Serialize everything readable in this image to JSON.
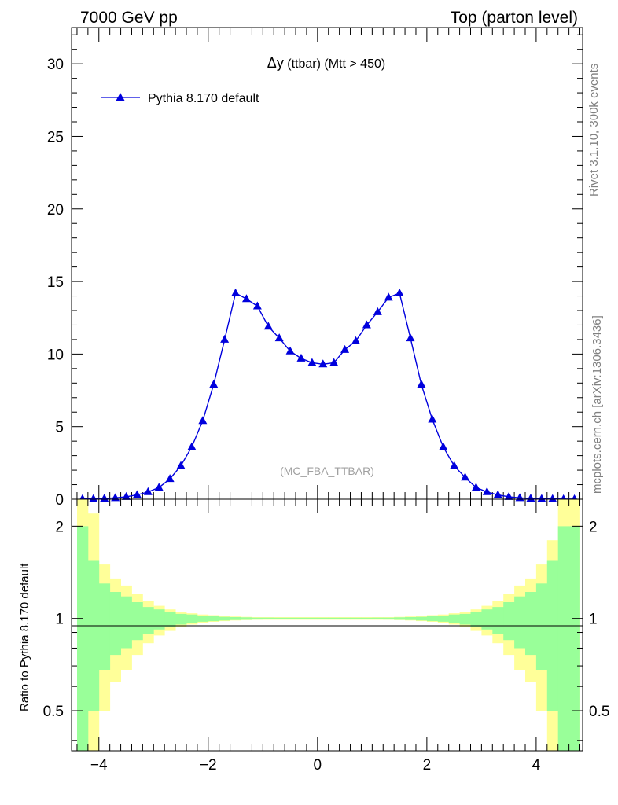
{
  "header": {
    "left": "7000 GeV pp",
    "right": "Top (parton level)"
  },
  "side": {
    "top": "Rivet 3.1.10,  300k events",
    "bottom": "mcplots.cern.ch [arXiv:1306.3436]"
  },
  "watermark": "(MC_FBA_TTBAR)",
  "chart_data": [
    {
      "type": "line",
      "title_main": "Δy",
      "title_rest": " (ttbar) (Mtt > 450)",
      "xlabel": "",
      "ylabel": "",
      "xlim": [
        -4.5,
        4.85
      ],
      "ylim": [
        0,
        32.5
      ],
      "xticks": [
        -4,
        -2,
        0,
        2,
        4
      ],
      "yticks": [
        0,
        5,
        10,
        15,
        20,
        25,
        30
      ],
      "legend_position": "top-left",
      "series": [
        {
          "name": "Pythia 8.170 default",
          "color": "#0000dd",
          "marker": "triangle",
          "x": [
            -4.3,
            -4.1,
            -3.9,
            -3.7,
            -3.5,
            -3.3,
            -3.1,
            -2.9,
            -2.7,
            -2.5,
            -2.3,
            -2.1,
            -1.9,
            -1.7,
            -1.5,
            -1.3,
            -1.1,
            -0.9,
            -0.7,
            -0.5,
            -0.3,
            -0.1,
            0.1,
            0.3,
            0.5,
            0.7,
            0.9,
            1.1,
            1.3,
            1.5,
            1.7,
            1.9,
            2.1,
            2.3,
            2.5,
            2.7,
            2.9,
            3.1,
            3.3,
            3.5,
            3.7,
            3.9,
            4.1,
            4.3,
            4.5,
            4.7
          ],
          "y": [
            0.02,
            0.03,
            0.05,
            0.09,
            0.17,
            0.3,
            0.5,
            0.8,
            1.4,
            2.3,
            3.6,
            5.4,
            7.9,
            11.0,
            14.2,
            13.8,
            13.3,
            11.9,
            11.1,
            10.2,
            9.7,
            9.4,
            9.3,
            9.4,
            10.3,
            10.9,
            12.0,
            12.9,
            13.9,
            14.2,
            11.1,
            7.9,
            5.5,
            3.6,
            2.3,
            1.5,
            0.8,
            0.5,
            0.3,
            0.17,
            0.09,
            0.05,
            0.03,
            0.02,
            0.01,
            0.01
          ]
        }
      ]
    },
    {
      "type": "area",
      "ylabel": "Ratio to Pythia 8.170 default",
      "xlim": [
        -4.5,
        4.85
      ],
      "ylim": [
        0.37,
        2.45
      ],
      "log_y": true,
      "yticks": [
        0.5,
        1,
        2
      ],
      "reference_line": 1,
      "bins": [
        -4.4,
        -4.2,
        -4.0,
        -3.8,
        -3.6,
        -3.4,
        -3.2,
        -3.0,
        -2.8,
        -2.6,
        -2.4,
        -2.2,
        -2.0,
        -1.8,
        -1.6,
        -1.4,
        -1.2,
        -1.0,
        -0.8,
        -0.6,
        -0.4,
        -0.2,
        0.0,
        0.2,
        0.4,
        0.6,
        0.8,
        1.0,
        1.2,
        1.4,
        1.6,
        1.8,
        2.0,
        2.2,
        2.4,
        2.6,
        2.8,
        3.0,
        3.2,
        3.4,
        3.6,
        3.8,
        4.0,
        4.2,
        4.4,
        4.6,
        4.8
      ],
      "bands": [
        {
          "name": "yellow",
          "color": "#ffff99",
          "upper": [
            2.6,
            2.2,
            1.5,
            1.35,
            1.28,
            1.2,
            1.14,
            1.1,
            1.07,
            1.05,
            1.04,
            1.03,
            1.025,
            1.02,
            1.015,
            1.012,
            1.01,
            1.01,
            1.01,
            1.01,
            1.01,
            1.01,
            1.01,
            1.01,
            1.01,
            1.01,
            1.01,
            1.01,
            1.01,
            1.012,
            1.015,
            1.02,
            1.025,
            1.03,
            1.04,
            1.05,
            1.07,
            1.1,
            1.14,
            1.2,
            1.28,
            1.35,
            1.5,
            1.8,
            2.6,
            2.6
          ],
          "lower": [
            0.3,
            0.35,
            0.5,
            0.62,
            0.68,
            0.76,
            0.83,
            0.88,
            0.91,
            0.935,
            0.955,
            0.965,
            0.975,
            0.98,
            0.985,
            0.988,
            0.99,
            0.99,
            0.99,
            0.99,
            0.99,
            0.99,
            0.99,
            0.99,
            0.99,
            0.99,
            0.99,
            0.99,
            0.99,
            0.988,
            0.985,
            0.98,
            0.975,
            0.965,
            0.955,
            0.935,
            0.91,
            0.88,
            0.83,
            0.76,
            0.68,
            0.62,
            0.5,
            0.35,
            0.3,
            0.3
          ]
        },
        {
          "name": "green",
          "color": "#99ff99",
          "upper": [
            2.0,
            1.55,
            1.3,
            1.22,
            1.18,
            1.13,
            1.09,
            1.07,
            1.05,
            1.035,
            1.03,
            1.02,
            1.017,
            1.012,
            1.01,
            1.008,
            1.006,
            1.006,
            1.005,
            1.005,
            1.005,
            1.005,
            1.005,
            1.005,
            1.005,
            1.005,
            1.005,
            1.006,
            1.006,
            1.008,
            1.01,
            1.012,
            1.017,
            1.02,
            1.03,
            1.035,
            1.05,
            1.07,
            1.09,
            1.13,
            1.18,
            1.22,
            1.3,
            1.55,
            2.0,
            2.0
          ],
          "lower": [
            0.3,
            0.5,
            0.68,
            0.76,
            0.8,
            0.85,
            0.89,
            0.92,
            0.94,
            0.955,
            0.965,
            0.975,
            0.98,
            0.985,
            0.988,
            0.99,
            0.992,
            0.993,
            0.994,
            0.994,
            0.994,
            0.994,
            0.994,
            0.994,
            0.994,
            0.994,
            0.994,
            0.993,
            0.992,
            0.99,
            0.988,
            0.985,
            0.98,
            0.975,
            0.965,
            0.955,
            0.94,
            0.92,
            0.89,
            0.85,
            0.8,
            0.76,
            0.68,
            0.5,
            0.3,
            0.3
          ]
        }
      ]
    }
  ]
}
